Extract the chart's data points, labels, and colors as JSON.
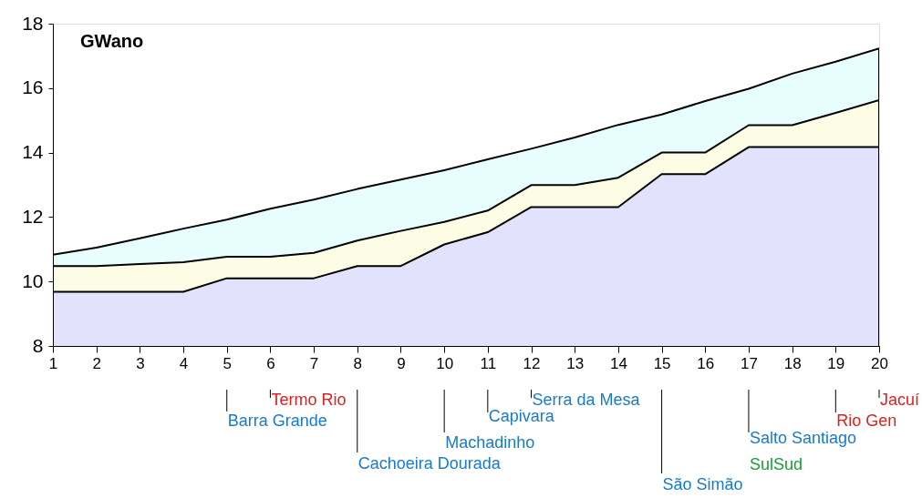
{
  "chart_data": {
    "type": "area",
    "title": "GWano",
    "x": [
      1,
      2,
      3,
      4,
      5,
      6,
      7,
      8,
      9,
      10,
      11,
      12,
      13,
      14,
      15,
      16,
      17,
      18,
      19,
      20
    ],
    "series": [
      {
        "color": "#e2e2fc",
        "values": [
          9.68,
          9.68,
          9.68,
          9.68,
          10.1,
          10.1,
          10.1,
          10.48,
          10.48,
          11.15,
          11.53,
          12.31,
          12.31,
          12.31,
          13.33,
          13.33,
          14.17,
          14.17,
          14.17,
          14.17
        ]
      },
      {
        "color": "#fdfde5",
        "values": [
          10.48,
          10.48,
          10.54,
          10.6,
          10.77,
          10.77,
          10.89,
          11.27,
          11.57,
          11.85,
          12.2,
          12.99,
          12.99,
          13.22,
          14.0,
          14.0,
          14.85,
          14.85,
          15.23,
          15.63
        ]
      },
      {
        "color": "#e8fdfd",
        "values": [
          10.83,
          11.05,
          11.34,
          11.64,
          11.92,
          12.26,
          12.54,
          12.87,
          13.16,
          13.45,
          13.79,
          14.12,
          14.47,
          14.86,
          15.18,
          15.6,
          15.98,
          16.45,
          16.82,
          17.23
        ]
      }
    ],
    "xlim": [
      1,
      20
    ],
    "xticks": [
      1,
      2,
      3,
      4,
      5,
      6,
      7,
      8,
      9,
      10,
      11,
      12,
      13,
      14,
      15,
      16,
      17,
      18,
      19,
      20
    ],
    "ylim": [
      8,
      18
    ],
    "yticks": [
      8,
      10,
      12,
      14,
      16,
      18
    ],
    "grid": false,
    "ref_lines": [
      {
        "axis": "x",
        "value": 5,
        "label": "Barra Grande"
      },
      {
        "axis": "x",
        "value": 6,
        "label": "Termo Rio"
      },
      {
        "axis": "x",
        "value": 8,
        "label": "Cachoeira Dourada"
      },
      {
        "axis": "x",
        "value": 10,
        "label": "Machadinho"
      },
      {
        "axis": "x",
        "value": 11,
        "label": "Capivara"
      },
      {
        "axis": "x",
        "value": 12,
        "label": "Serra da Mesa"
      },
      {
        "axis": "x",
        "value": 15,
        "label": "São Simão"
      },
      {
        "axis": "x",
        "value": 17,
        "label": "Salto Santiago"
      },
      {
        "axis": "x",
        "value": 19,
        "label": "Rio Gen"
      },
      {
        "axis": "x",
        "value": 20,
        "label": "Jacuí"
      }
    ],
    "annotations": [
      "SulSud"
    ]
  }
}
